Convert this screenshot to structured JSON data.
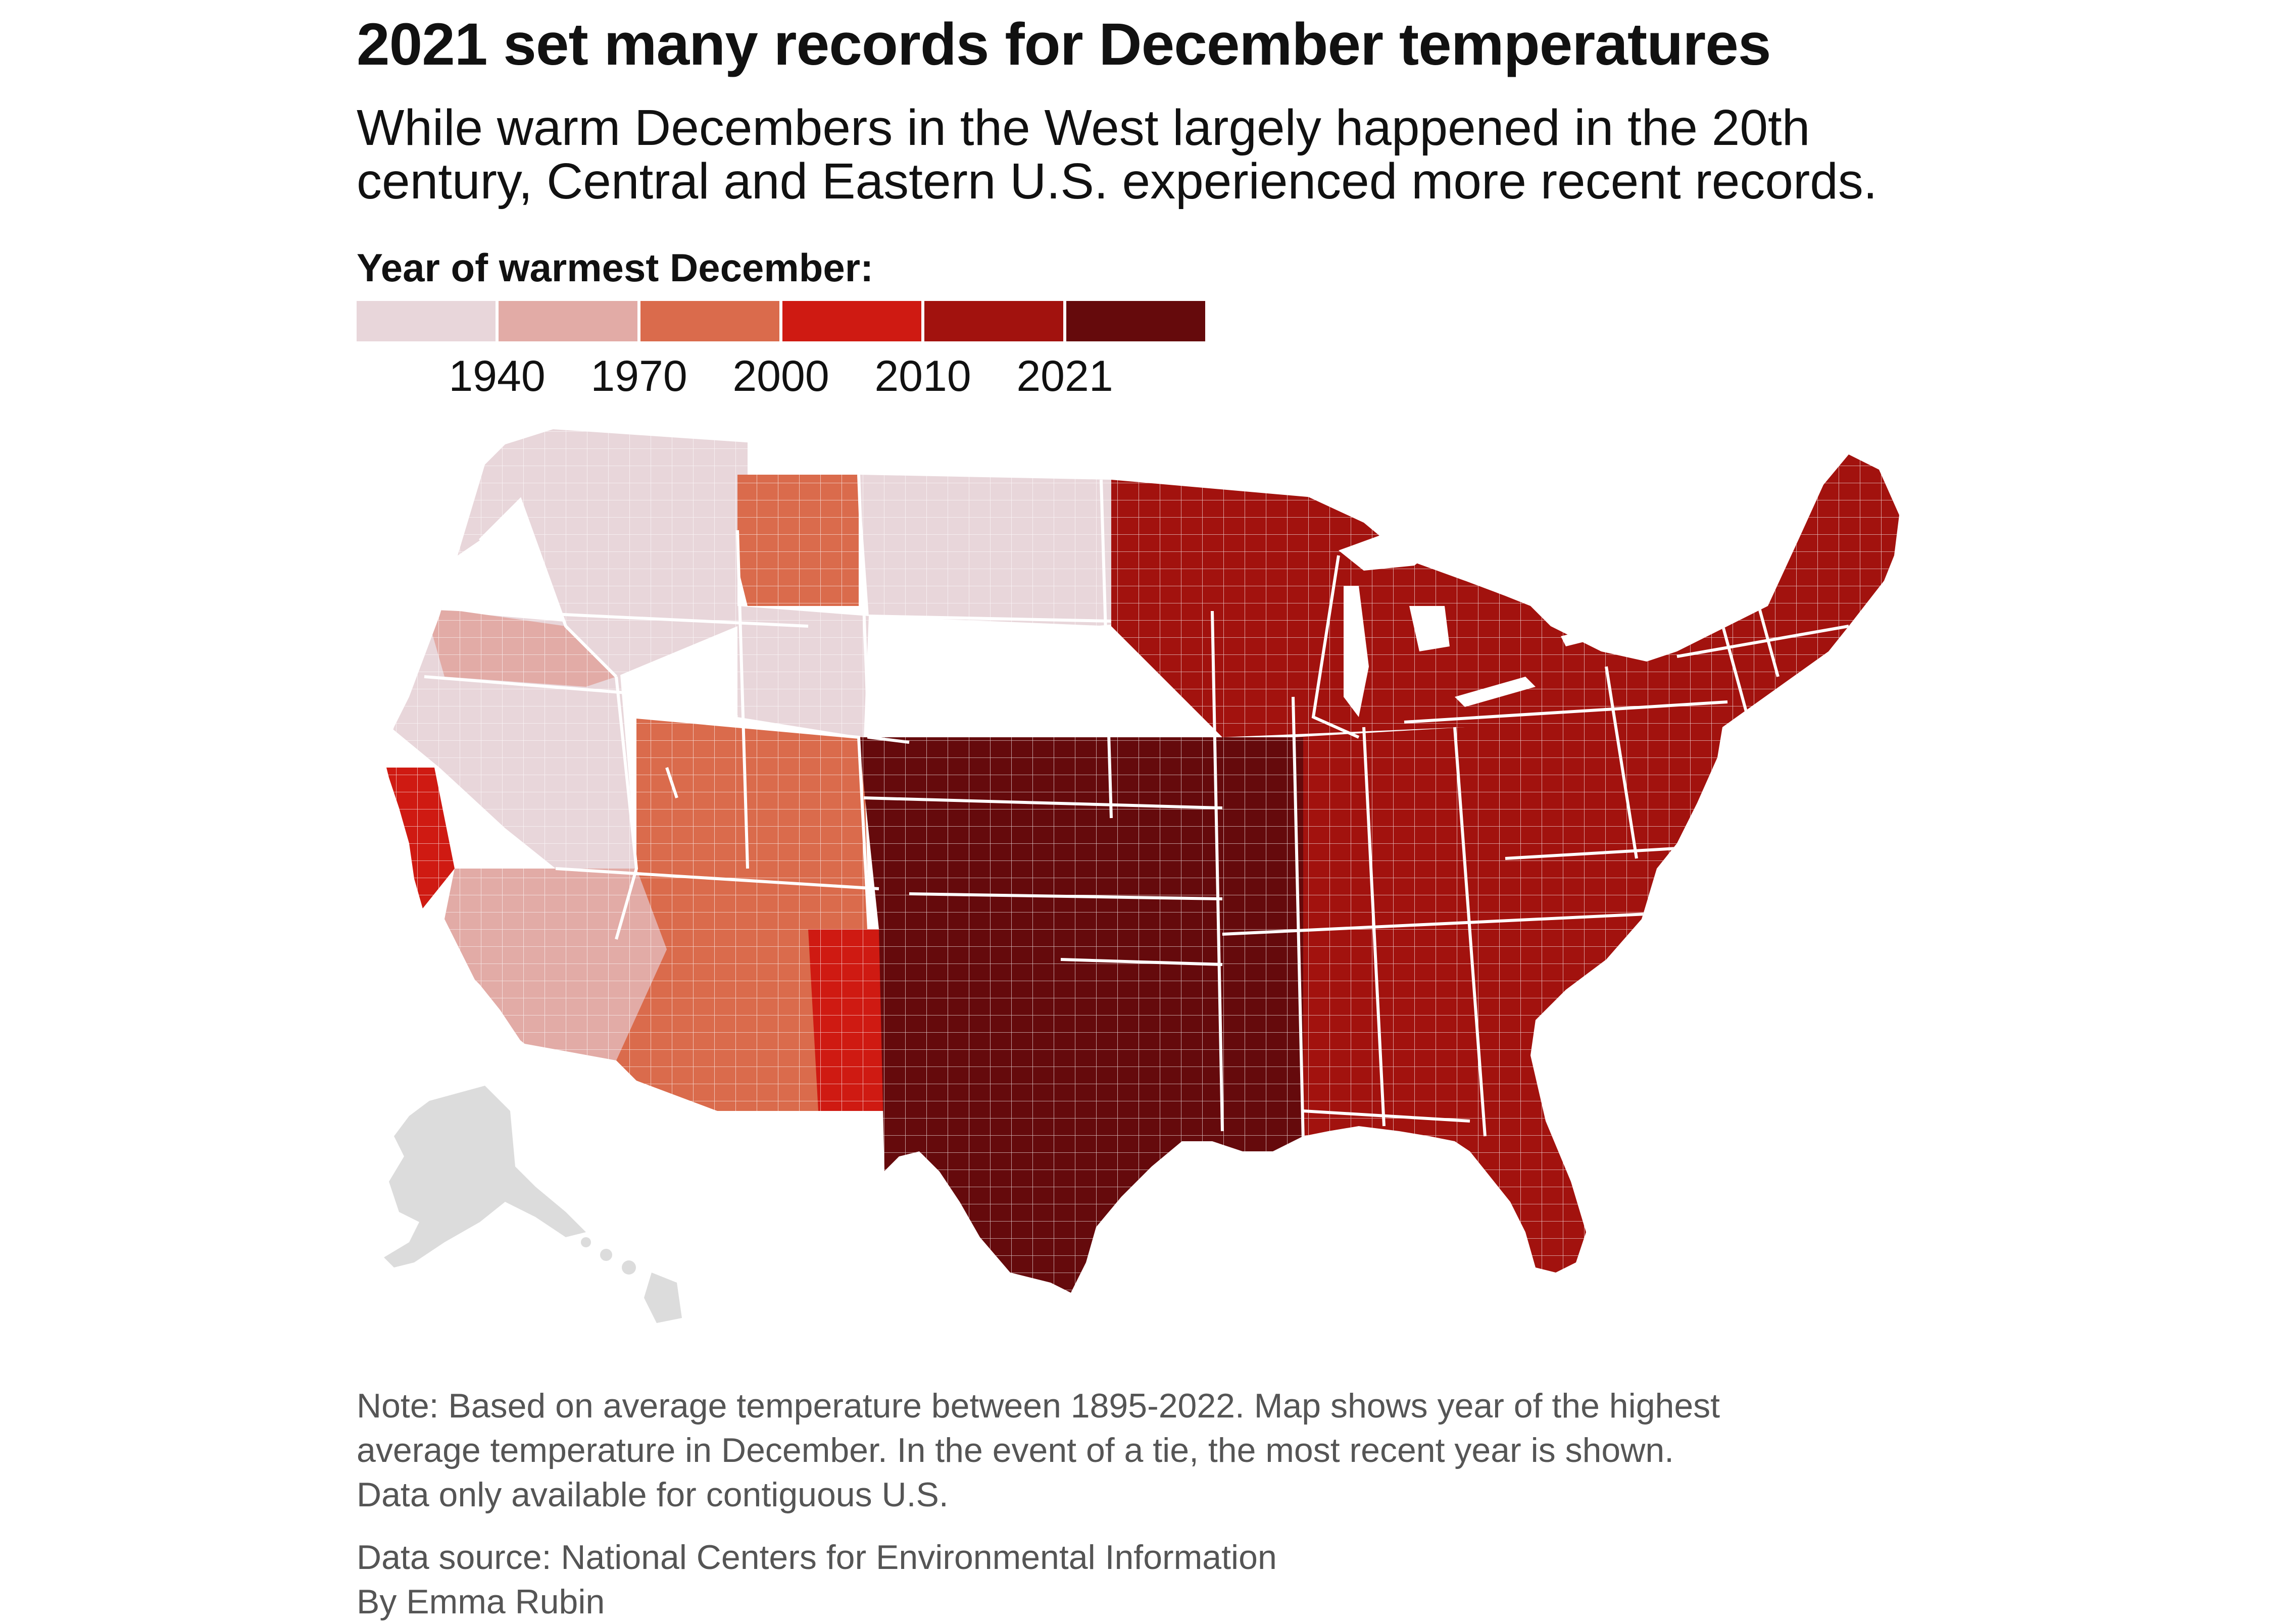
{
  "header": {
    "title": "2021 set many records for December temperatures",
    "subtitle_line1": "While warm Decembers in the West largely happened in the 20th",
    "subtitle_line2": "century, Central and Eastern U.S. experienced more recent records."
  },
  "legend": {
    "title": "Year of warmest December:",
    "swatch_colors": [
      "#e8d6da",
      "#e2aba6",
      "#da6b4c",
      "#cf1a12",
      "#a2120e",
      "#650a0c"
    ],
    "ticks": [
      "1940",
      "1970",
      "2000",
      "2010",
      "2021"
    ]
  },
  "map": {
    "no_data_color": "#dcdcdc",
    "regions": [
      {
        "name": "Pacific Northwest",
        "bin": 0
      },
      {
        "name": "Northern California / Nevada",
        "bin": 0
      },
      {
        "name": "Idaho / Montana west",
        "bin": 0
      },
      {
        "name": "Wyoming",
        "bin": 0
      },
      {
        "name": "Western Dakotas",
        "bin": 0
      },
      {
        "name": "Oregon interior",
        "bin": 1
      },
      {
        "name": "Southern California / Nevada south",
        "bin": 1
      },
      {
        "name": "Montana east",
        "bin": 2
      },
      {
        "name": "Colorado / Utah / Arizona",
        "bin": 2
      },
      {
        "name": "California coast spots",
        "bin": 3
      },
      {
        "name": "New Mexico west",
        "bin": 3
      },
      {
        "name": "Upper Midwest / Great Lakes",
        "bin": 4
      },
      {
        "name": "Northeast / Mid-Atlantic",
        "bin": 4
      },
      {
        "name": "Southeast / Florida",
        "bin": 4
      },
      {
        "name": "Plains / Texas / Oklahoma",
        "bin": 5
      },
      {
        "name": "Mississippi Valley",
        "bin": 5
      },
      {
        "name": "Eastern New Mexico",
        "bin": 5
      },
      {
        "name": "Alaska",
        "bin": null
      },
      {
        "name": "Hawaii",
        "bin": null
      }
    ]
  },
  "footer": {
    "note_line1": "Note: Based on average temperature between 1895-2022. Map shows year of the highest",
    "note_line2": "average temperature in December. In the event of a tie, the most recent year is shown.",
    "note_line3": "Data only available for contiguous U.S.",
    "source": "Data source: National Centers for Environmental Information",
    "byline": "By Emma Rubin"
  }
}
